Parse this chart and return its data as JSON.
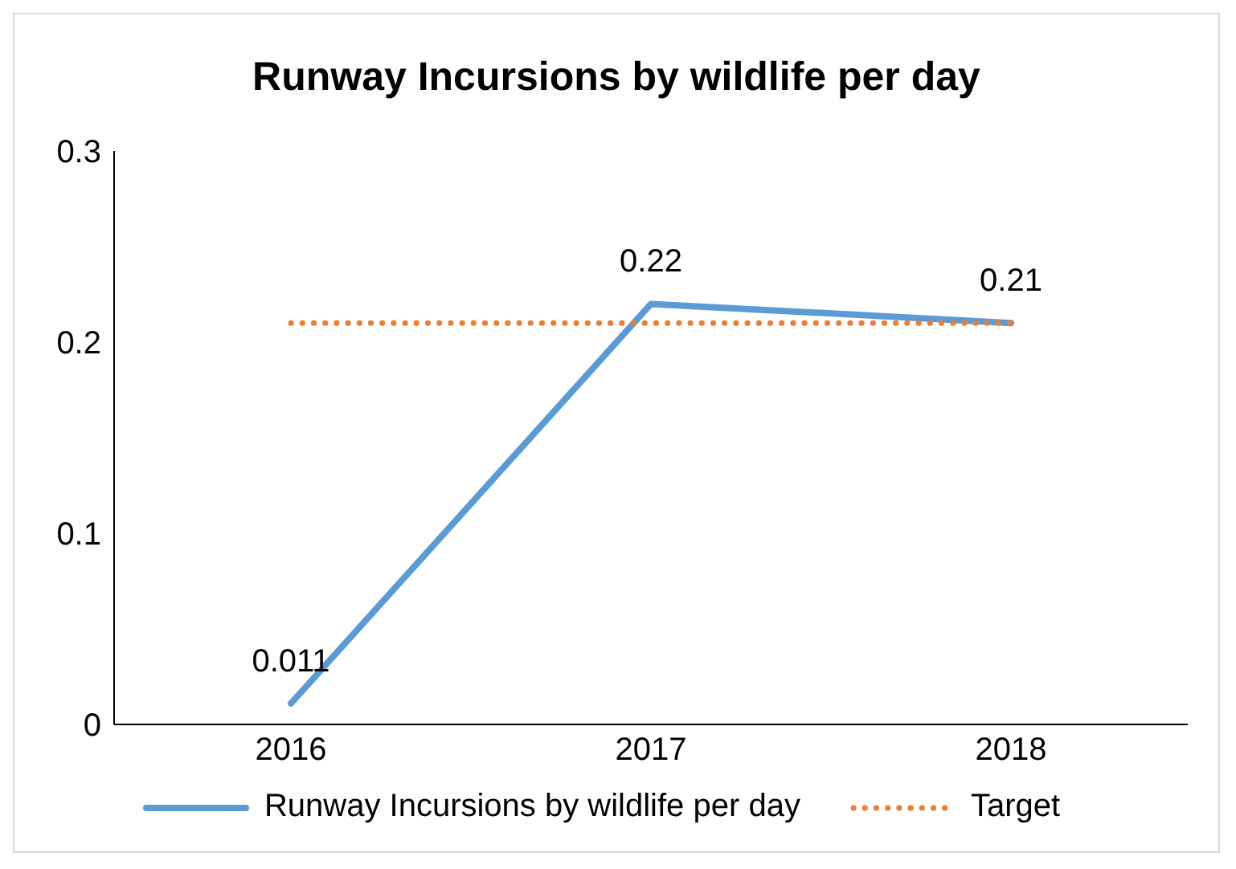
{
  "chart_data": {
    "type": "line",
    "title": "Runway Incursions by wildlife per day",
    "categories": [
      "2016",
      "2017",
      "2018"
    ],
    "series": [
      {
        "name": "Runway Incursions by wildlife per day",
        "color": "#5b9bd5",
        "values": [
          0.011,
          0.22,
          0.21
        ],
        "value_labels": [
          "0.011",
          "0.22",
          "0.21"
        ],
        "line_style": "solid"
      },
      {
        "name": "Target",
        "color": "#ed7d31",
        "values": [
          0.21,
          0.21,
          0.21
        ],
        "line_style": "dotted"
      }
    ],
    "ylim": [
      0,
      0.3
    ],
    "yticks": [
      0,
      0.1,
      0.2,
      0.3
    ],
    "grid": false,
    "legend": "bottom",
    "marker": "none"
  }
}
